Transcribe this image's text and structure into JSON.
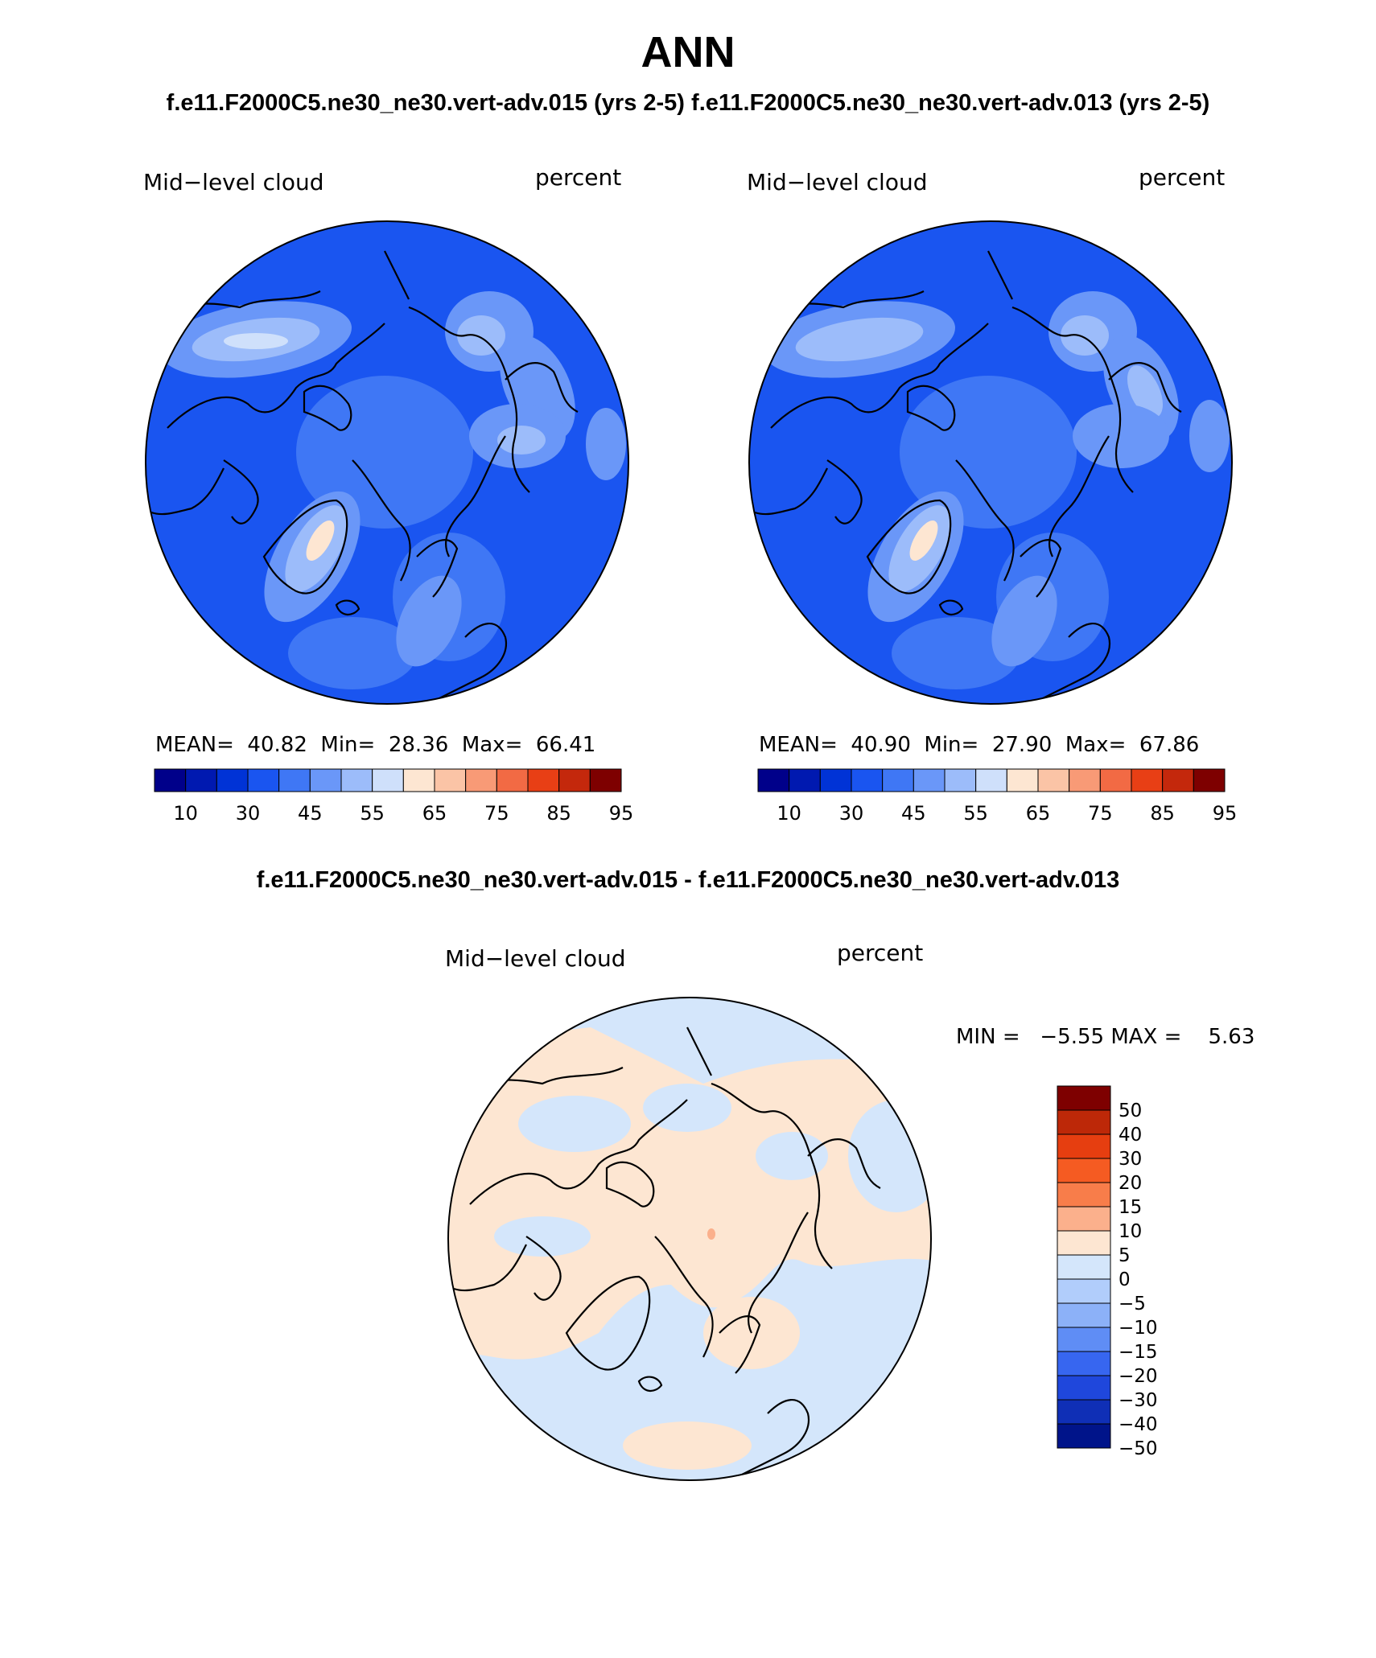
{
  "title": "ANN",
  "top_subtitle_left": "f.e11.F2000C5.ne30_ne30.vert-adv.015 (yrs 2-5)",
  "top_subtitle_right": "f.e11.F2000C5.ne30_ne30.vert-adv.013 (yrs 2-5)",
  "panels": [
    {
      "variable": "Mid−level cloud",
      "units": "percent",
      "mean_label": "MEAN=",
      "mean": "40.82",
      "min_label": "Min=",
      "min": "28.36",
      "max_label": "Max=",
      "max": "66.41"
    },
    {
      "variable": "Mid−level cloud",
      "units": "percent",
      "mean_label": "MEAN=",
      "mean": "40.90",
      "min_label": "Min=",
      "min": "27.90",
      "max_label": "Max=",
      "max": "67.86"
    }
  ],
  "diff_subtitle": "f.e11.F2000C5.ne30_ne30.vert-adv.015 - f.e11.F2000C5.ne30_ne30.vert-adv.013",
  "diff_panel": {
    "variable": "Mid−level cloud",
    "units": "percent",
    "minmax_text": "MIN =   −5.55 MAX =    5.63"
  },
  "colorbar_levels": [
    "10",
    "30",
    "45",
    "55",
    "65",
    "75",
    "85",
    "95"
  ],
  "colorbar_colors": [
    "#00008a",
    "#0019b0",
    "#0033d6",
    "#1a55f0",
    "#3f77f5",
    "#6a97f8",
    "#9cbcfa",
    "#cfe0fb",
    "#fde6d2",
    "#fbc4a6",
    "#f89a76",
    "#f26a44",
    "#e83f15",
    "#c4280c",
    "#7e0000"
  ],
  "diff_levels": [
    "50",
    "40",
    "30",
    "20",
    "15",
    "10",
    "5",
    "0",
    "−5",
    "−10",
    "−15",
    "−20",
    "−30",
    "−40",
    "−50"
  ],
  "diff_colors": [
    "#7e0000",
    "#bd2808",
    "#e63e10",
    "#f55b22",
    "#f87d4a",
    "#fbb08c",
    "#fde6d2",
    "#d4e6fb",
    "#b1cdfb",
    "#8cb1f8",
    "#5f8df5",
    "#3766f0",
    "#1f47dc",
    "#0f2fb6",
    "#00148a"
  ]
}
